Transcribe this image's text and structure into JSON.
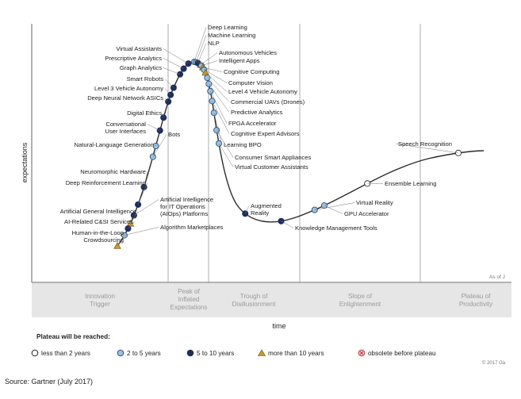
{
  "chart_data": {
    "type": "line",
    "title": "",
    "xlabel": "time",
    "ylabel": "expectations",
    "phases": [
      {
        "id": "innovation",
        "label": "Innovation Trigger"
      },
      {
        "id": "peak",
        "label": "Peak of Inflated Expectations"
      },
      {
        "id": "trough",
        "label": "Trough of Disillusionment"
      },
      {
        "id": "slope",
        "label": "Slope of Enlightenment"
      },
      {
        "id": "plateau",
        "label": "Plateau of Productivity"
      }
    ],
    "legend": {
      "title": "Plateau will be reached:",
      "items": [
        {
          "key": "lt2",
          "label": "less than 2 years",
          "symbol": "white-circle"
        },
        {
          "key": "2to5",
          "label": "2 to 5 years",
          "symbol": "light-blue-circle"
        },
        {
          "key": "5to10",
          "label": "5 to 10 years",
          "symbol": "dark-blue-circle"
        },
        {
          "key": "gt10",
          "label": "more than 10 years",
          "symbol": "triangle"
        },
        {
          "key": "obsolete",
          "label": "obsolete before plateau",
          "symbol": "red-cross-circle"
        }
      ]
    },
    "series": [
      {
        "t": 0.34,
        "label": "Deep Learning",
        "cat": "2to5"
      },
      {
        "t": 0.348,
        "label": "Machine Learning",
        "cat": "2to5"
      },
      {
        "t": 0.356,
        "label": "NLP",
        "cat": "5to10"
      },
      {
        "t": 0.368,
        "label": "Autonomous Vehicles",
        "cat": "gt10"
      },
      {
        "t": 0.372,
        "label": "Intelligent Apps",
        "cat": "2to5"
      },
      {
        "t": 0.378,
        "label": "Cognitive Computing",
        "cat": "gt10"
      },
      {
        "t": 0.384,
        "label": "Computer Vision",
        "cat": "2to5"
      },
      {
        "t": 0.39,
        "label": "Level 4 Vehicle Autonomy",
        "cat": "gt10"
      },
      {
        "t": 0.398,
        "label": "Commercial UAVs (Drones)",
        "cat": "2to5"
      },
      {
        "t": 0.405,
        "label": "Predictive Analytics",
        "cat": "2to5"
      },
      {
        "t": 0.412,
        "label": "FPGA Accelerator",
        "cat": "2to5"
      },
      {
        "t": 0.42,
        "label": "Cognitive Expert Advisors",
        "cat": "2to5"
      },
      {
        "t": 0.428,
        "label": "Learning BPO",
        "cat": "2to5"
      },
      {
        "t": 0.44,
        "label": "Consumer Smart Appliances",
        "cat": "2to5"
      },
      {
        "t": 0.45,
        "label": "Virtual Customer Assistants",
        "cat": "2to5"
      },
      {
        "t": 0.505,
        "label": "Augmented Reality",
        "cat": "5to10"
      },
      {
        "t": 0.58,
        "label": "Knowledge Management Tools",
        "cat": "5to10"
      },
      {
        "t": 0.65,
        "label": "Virtual Reality",
        "cat": "2to5"
      },
      {
        "t": 0.67,
        "label": "GPU Accelerator",
        "cat": "2to5"
      },
      {
        "t": 0.76,
        "label": "Ensemble Learning",
        "cat": "lt2"
      },
      {
        "t": 0.95,
        "label": "Speech Recognition",
        "cat": "lt2"
      },
      {
        "t": 0.33,
        "label": "Virtual Assistants",
        "cat": "5to10"
      },
      {
        "t": 0.322,
        "label": "Prescriptive Analytics",
        "cat": "5to10"
      },
      {
        "t": 0.316,
        "label": "Graph Analytics",
        "cat": "5to10"
      },
      {
        "t": 0.305,
        "label": "Smart Robots",
        "cat": "5to10"
      },
      {
        "t": 0.3,
        "label": "Level 3 Vehicle Autonomy",
        "cat": "5to10"
      },
      {
        "t": 0.296,
        "label": "Deep Neural Network ASICs",
        "cat": "5to10"
      },
      {
        "t": 0.288,
        "label": "Digital Ethics",
        "cat": "5to10"
      },
      {
        "t": 0.282,
        "label": "Conversational User Interfaces",
        "cat": "5to10"
      },
      {
        "t": 0.275,
        "label": "Natural-Language Generation",
        "cat": "2to5"
      },
      {
        "t": 0.27,
        "label": "Bots",
        "cat": "2to5"
      },
      {
        "t": 0.255,
        "label": "Neuromorphic Hardware",
        "cat": "5to10"
      },
      {
        "t": 0.245,
        "label": "Deep Reinforcement Learning",
        "cat": "5to10"
      },
      {
        "t": 0.238,
        "label": "Artificial Intelligence for IT Operations (AIOps) Platforms",
        "cat": "5to10"
      },
      {
        "t": 0.232,
        "label": "Artificial General Intelligence",
        "cat": "gt10"
      },
      {
        "t": 0.228,
        "label": "AI-Related C&SI Services",
        "cat": "5to10"
      },
      {
        "t": 0.222,
        "label": "Algorithm Marketplaces",
        "cat": "2to5"
      },
      {
        "t": 0.21,
        "label": "Human-in-the-Loop Crowdsourcing",
        "cat": "gt10"
      }
    ]
  },
  "footer": {
    "source": "Source: Gartner (July 2017)",
    "copyright": "© 2017 Ga",
    "as_of": "As of J"
  },
  "colors": {
    "dark_dot": "#1e2f5a",
    "light_dot": "#8fb4d6",
    "triangle": "#c89a2c",
    "curve": "#2b2b2b",
    "phase_bar": "#dcdcdc"
  }
}
